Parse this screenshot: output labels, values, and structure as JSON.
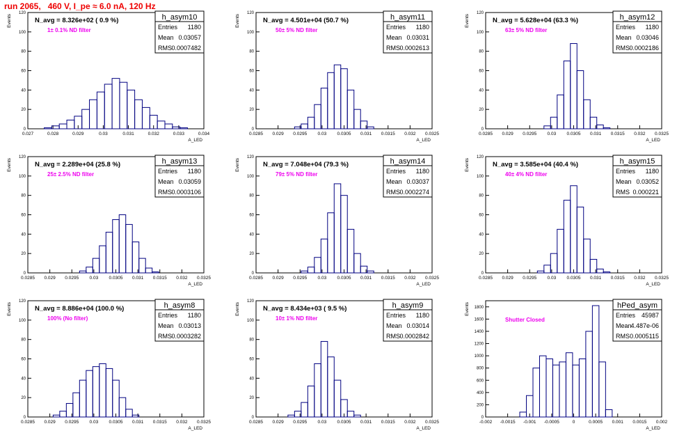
{
  "header": {
    "run_label": "run 2065,   460 V, I_pe ≈ 6.0 nA, 120 Hz"
  },
  "colors": {
    "histogram": "#000080",
    "annotation": "#ee00ee",
    "title": "#ee0000",
    "axis": "#000000"
  },
  "stats_labels": {
    "entries": "Entries",
    "mean": "Mean",
    "rms": "RMS"
  },
  "chart_data": [
    {
      "type": "histogram",
      "name": "h_asym10",
      "title": "N_avg = 8.326e+02 ( 0.9 %)",
      "note": "1± 0.1% ND filter",
      "stats": {
        "entries": "1180",
        "mean": "0.03057",
        "rms": "0.0007482"
      },
      "xlabel": "A_LED",
      "ylabel": "Events",
      "xlim": [
        0.027,
        0.034
      ],
      "ylim": [
        0,
        120
      ],
      "xticks": [
        "0.027",
        "0.028",
        "0.029",
        "0.03",
        "0.031",
        "0.032",
        "0.033",
        "0.034"
      ],
      "yticks": [
        "0",
        "20",
        "40",
        "60",
        "80",
        "100",
        "120"
      ],
      "x": [
        0.0278,
        0.0281,
        0.0284,
        0.0287,
        0.029,
        0.0293,
        0.0296,
        0.0299,
        0.0302,
        0.0305,
        0.0308,
        0.0311,
        0.0314,
        0.0317,
        0.032,
        0.0323,
        0.0326,
        0.0329,
        0.0332
      ],
      "values": [
        1,
        3,
        5,
        9,
        13,
        20,
        30,
        38,
        46,
        52,
        48,
        40,
        30,
        22,
        14,
        8,
        5,
        2,
        1
      ]
    },
    {
      "type": "histogram",
      "name": "h_asym11",
      "title": "N_avg = 4.501e+04 (50.7 %)",
      "note": "50± 5% ND filter",
      "stats": {
        "entries": "1180",
        "mean": "0.03031",
        "rms": "0.0002613"
      },
      "xlabel": "A_LED",
      "ylabel": "Events",
      "xlim": [
        0.0285,
        0.0325
      ],
      "ylim": [
        0,
        120
      ],
      "xticks": [
        "0.0285",
        "0.029",
        "0.0295",
        "0.03",
        "0.0305",
        "0.031",
        "0.0315",
        "0.032",
        "0.0325"
      ],
      "yticks": [
        "0",
        "20",
        "40",
        "60",
        "80",
        "100",
        "120"
      ],
      "x": [
        0.02945,
        0.0296,
        0.02975,
        0.0299,
        0.03005,
        0.0302,
        0.03035,
        0.0305,
        0.03065,
        0.0308,
        0.03095,
        0.0311
      ],
      "values": [
        2,
        5,
        12,
        25,
        42,
        58,
        66,
        62,
        40,
        20,
        8,
        2
      ]
    },
    {
      "type": "histogram",
      "name": "h_asym12",
      "title": "N_avg = 5.628e+04 (63.3 %)",
      "note": "63± 5% ND filter",
      "stats": {
        "entries": "1180",
        "mean": "0.03046",
        "rms": "0.0002186"
      },
      "xlabel": "A_LED",
      "ylabel": "Events",
      "xlim": [
        0.0285,
        0.0325
      ],
      "ylim": [
        0,
        120
      ],
      "xticks": [
        "0.0285",
        "0.029",
        "0.0295",
        "0.03",
        "0.0305",
        "0.031",
        "0.0315",
        "0.032",
        "0.0325"
      ],
      "yticks": [
        "0",
        "20",
        "40",
        "60",
        "80",
        "100",
        "120"
      ],
      "x": [
        0.0299,
        0.03005,
        0.0302,
        0.03035,
        0.0305,
        0.03065,
        0.0308,
        0.03095,
        0.0311,
        0.03125
      ],
      "values": [
        3,
        12,
        35,
        70,
        88,
        60,
        30,
        12,
        4,
        1
      ]
    },
    {
      "type": "histogram",
      "name": "h_asym13",
      "title": "N_avg = 2.289e+04 (25.8 %)",
      "note": "25± 2.5% ND filter",
      "stats": {
        "entries": "1180",
        "mean": "0.03059",
        "rms": "0.0003106"
      },
      "xlabel": "A_LED",
      "ylabel": "Events",
      "xlim": [
        0.0285,
        0.0325
      ],
      "ylim": [
        0,
        120
      ],
      "xticks": [
        "0.0285",
        "0.029",
        "0.0295",
        "0.03",
        "0.0305",
        "0.031",
        "0.0315",
        "0.032",
        "0.0325"
      ],
      "yticks": [
        "0",
        "20",
        "40",
        "60",
        "80",
        "100",
        "120"
      ],
      "x": [
        0.02975,
        0.0299,
        0.03005,
        0.0302,
        0.03035,
        0.0305,
        0.03065,
        0.0308,
        0.03095,
        0.0311,
        0.03125,
        0.0314
      ],
      "values": [
        2,
        6,
        15,
        28,
        42,
        55,
        60,
        50,
        32,
        15,
        5,
        1
      ]
    },
    {
      "type": "histogram",
      "name": "h_asym14",
      "title": "N_avg = 7.048e+04 (79.3 %)",
      "note": "79± 5% ND filter",
      "stats": {
        "entries": "1180",
        "mean": "0.03037",
        "rms": "0.0002274"
      },
      "xlabel": "A_LED",
      "ylabel": "Events",
      "xlim": [
        0.0285,
        0.0325
      ],
      "ylim": [
        0,
        120
      ],
      "xticks": [
        "0.0285",
        "0.029",
        "0.0295",
        "0.03",
        "0.0305",
        "0.031",
        "0.0315",
        "0.032",
        "0.0325"
      ],
      "yticks": [
        "0",
        "20",
        "40",
        "60",
        "80",
        "100",
        "120"
      ],
      "x": [
        0.0296,
        0.02975,
        0.0299,
        0.03005,
        0.0302,
        0.03035,
        0.0305,
        0.03065,
        0.0308,
        0.03095,
        0.0311
      ],
      "values": [
        2,
        6,
        16,
        35,
        62,
        92,
        80,
        45,
        20,
        7,
        2
      ]
    },
    {
      "type": "histogram",
      "name": "h_asym15",
      "title": "N_avg = 3.585e+04 (40.4 %)",
      "note": "40± 4% ND filter",
      "stats": {
        "entries": "1180",
        "mean": "0.03052",
        "rms": "0.000221"
      },
      "xlabel": "A_LED",
      "ylabel": "Events",
      "xlim": [
        0.0285,
        0.0325
      ],
      "ylim": [
        0,
        120
      ],
      "xticks": [
        "0.0285",
        "0.029",
        "0.0295",
        "0.03",
        "0.0305",
        "0.031",
        "0.0315",
        "0.032",
        "0.0325"
      ],
      "yticks": [
        "0",
        "20",
        "40",
        "60",
        "80",
        "100",
        "120"
      ],
      "x": [
        0.02975,
        0.0299,
        0.03005,
        0.0302,
        0.03035,
        0.0305,
        0.03065,
        0.0308,
        0.03095,
        0.0311,
        0.03125
      ],
      "values": [
        2,
        8,
        20,
        45,
        75,
        90,
        68,
        35,
        14,
        4,
        1
      ]
    },
    {
      "type": "histogram",
      "name": "h_asym8",
      "title": "N_avg = 8.886e+04 (100.0 %)",
      "note": "100% (No filter)",
      "stats": {
        "entries": "1180",
        "mean": "0.03013",
        "rms": "0.0003282"
      },
      "xlabel": "A_LED",
      "ylabel": "Events",
      "xlim": [
        0.0285,
        0.0325
      ],
      "ylim": [
        0,
        120
      ],
      "xticks": [
        "0.0285",
        "0.029",
        "0.0295",
        "0.03",
        "0.0305",
        "0.031",
        "0.0315",
        "0.032",
        "0.0325"
      ],
      "yticks": [
        "0",
        "20",
        "40",
        "60",
        "80",
        "100",
        "120"
      ],
      "x": [
        0.02915,
        0.0293,
        0.02945,
        0.0296,
        0.02975,
        0.0299,
        0.03005,
        0.0302,
        0.03035,
        0.0305,
        0.03065,
        0.0308,
        0.03095
      ],
      "values": [
        2,
        6,
        14,
        25,
        38,
        48,
        52,
        55,
        50,
        38,
        20,
        8,
        2
      ]
    },
    {
      "type": "histogram",
      "name": "h_asym9",
      "title": "N_avg = 8.434e+03 ( 9.5 %)",
      "note": "10± 1% ND filter",
      "stats": {
        "entries": "1180",
        "mean": "0.03014",
        "rms": "0.0002842"
      },
      "xlabel": "A_LED",
      "ylabel": "Events",
      "xlim": [
        0.0285,
        0.0325
      ],
      "ylim": [
        0,
        120
      ],
      "xticks": [
        "0.0285",
        "0.029",
        "0.0295",
        "0.03",
        "0.0305",
        "0.031",
        "0.0315",
        "0.032",
        "0.0325"
      ],
      "yticks": [
        "0",
        "20",
        "40",
        "60",
        "80",
        "100",
        "120"
      ],
      "x": [
        0.0293,
        0.02945,
        0.0296,
        0.02975,
        0.0299,
        0.03005,
        0.0302,
        0.03035,
        0.0305,
        0.03065,
        0.0308
      ],
      "values": [
        2,
        6,
        15,
        32,
        55,
        78,
        62,
        38,
        18,
        6,
        2
      ]
    },
    {
      "type": "histogram",
      "name": "hPed_asym",
      "title": "",
      "note": "Shutter Closed",
      "stats": {
        "entries": "45987",
        "mean": "4.487e-06",
        "rms": "0.0005115"
      },
      "xlabel": "A_LED",
      "ylabel": "Events",
      "xlim": [
        -0.002,
        0.002
      ],
      "ylim": [
        0,
        1900
      ],
      "xticks": [
        "-0.002",
        "-0.0015",
        "-0.001",
        "-0.0005",
        "0",
        "0.0005",
        "0.001",
        "0.0015",
        "0.002"
      ],
      "yticks": [
        "0",
        "200",
        "400",
        "600",
        "800",
        "1000",
        "1200",
        "1400",
        "1600",
        "1800"
      ],
      "x": [
        -0.00115,
        -0.001,
        -0.00085,
        -0.0007,
        -0.00055,
        -0.0004,
        -0.00025,
        -0.0001,
        5e-05,
        0.0002,
        0.00035,
        0.0005,
        0.00065,
        0.0008
      ],
      "values": [
        80,
        350,
        800,
        1000,
        950,
        850,
        900,
        1050,
        850,
        950,
        1400,
        1820,
        900,
        120
      ]
    }
  ]
}
